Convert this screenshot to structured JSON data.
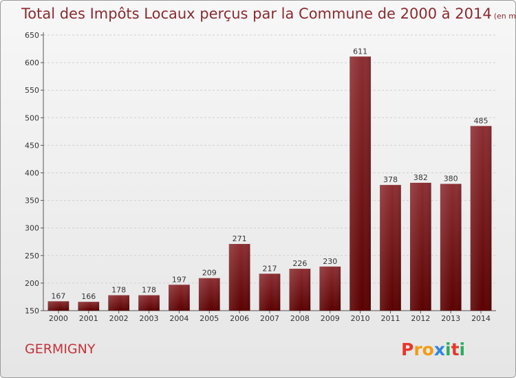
{
  "title": "Total des Impôts Locaux perçus par la Commune de 2000 à 2014",
  "unit": "(en milliers d'€)",
  "commune": "GERMIGNY",
  "logo": {
    "text": "Proxiti",
    "colors": [
      "#e8372a",
      "#f39c12",
      "#2e86de",
      "#27ae60"
    ]
  },
  "colors": {
    "bar_top": "#8c2e32",
    "bar_bottom": "#5a0000",
    "title": "#8b2a2f",
    "commune": "#c4323a"
  },
  "chart_data": {
    "type": "bar",
    "title": "Total des Impôts Locaux perçus par la Commune de 2000 à 2014",
    "xlabel": "",
    "ylabel": "",
    "categories": [
      "2000",
      "2001",
      "2002",
      "2003",
      "2004",
      "2005",
      "2006",
      "2007",
      "2008",
      "2009",
      "2010",
      "2011",
      "2012",
      "2013",
      "2014"
    ],
    "values": [
      167,
      166,
      178,
      178,
      197,
      209,
      271,
      217,
      226,
      230,
      611,
      378,
      382,
      380,
      485
    ],
    "value_labels": [
      "167",
      "166",
      "178",
      "178",
      "197",
      "209",
      "271",
      "217",
      "226",
      "230",
      "611",
      "378",
      "382",
      "380",
      "485"
    ],
    "yticks": [
      "150",
      "200",
      "250",
      "300",
      "350",
      "400",
      "450",
      "500",
      "550",
      "600",
      "650"
    ],
    "ylim": [
      150,
      650
    ]
  }
}
